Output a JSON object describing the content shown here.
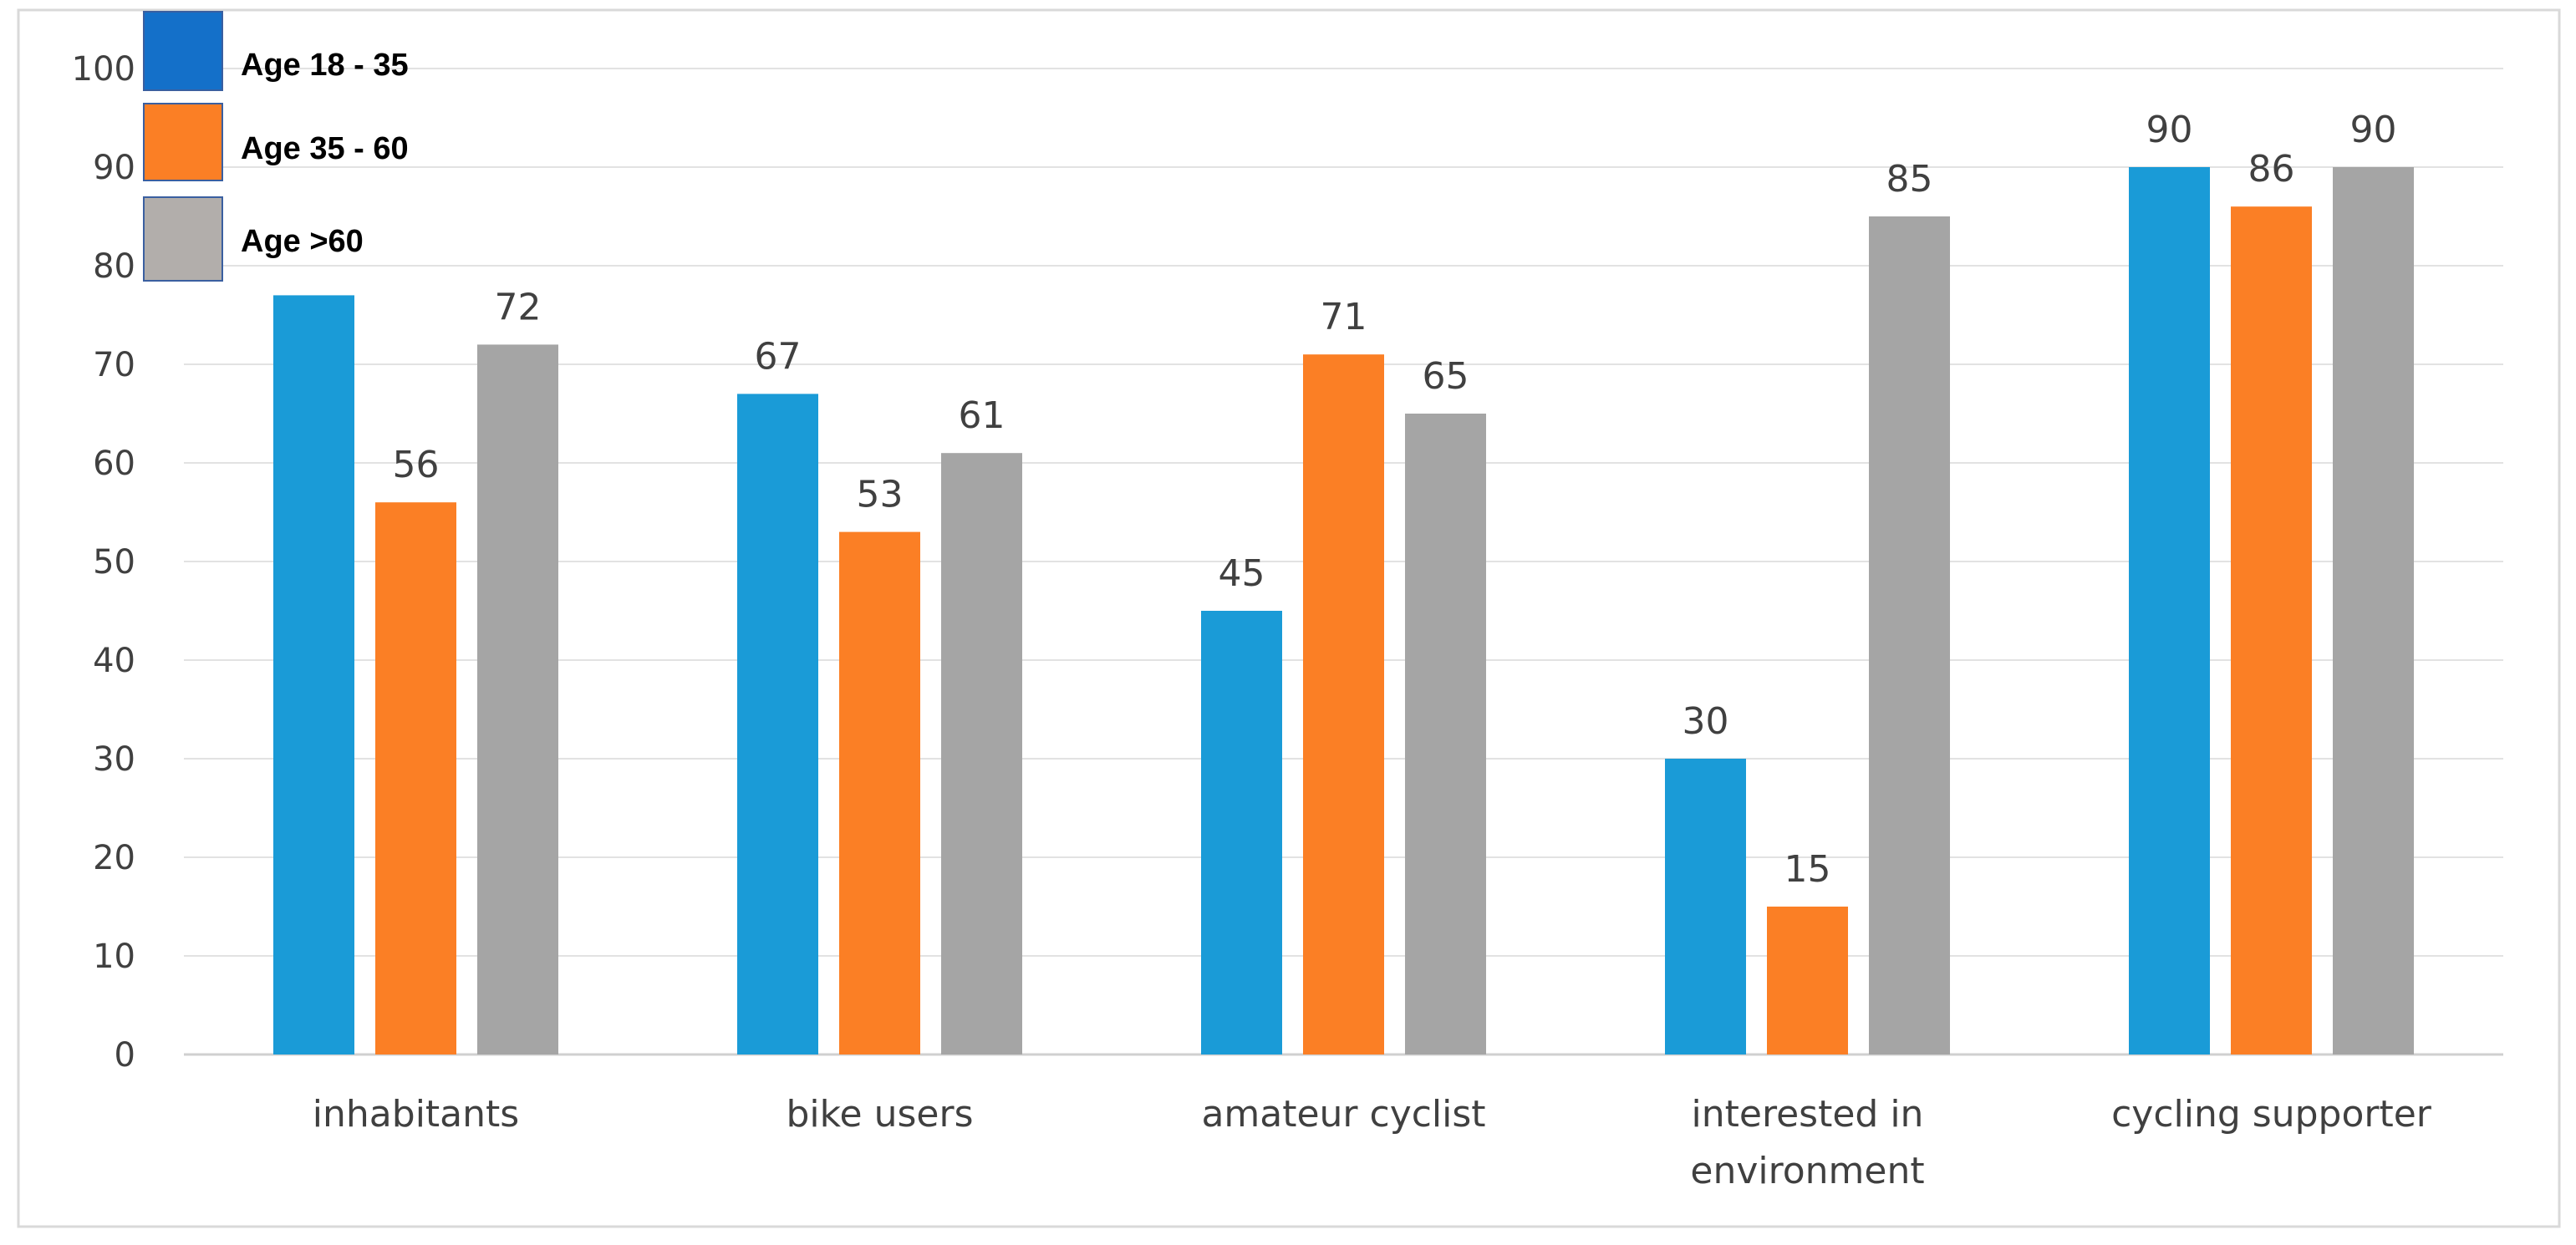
{
  "chart_data": {
    "type": "bar",
    "title": "",
    "xlabel": "",
    "ylabel": "",
    "ylim": [
      0,
      100
    ],
    "yticks": [
      0,
      10,
      20,
      30,
      40,
      50,
      60,
      70,
      80,
      90,
      100
    ],
    "grid": true,
    "legend_position": "top-left",
    "categories": [
      [
        "inhabitants"
      ],
      [
        "bike users"
      ],
      [
        "amateur cyclist"
      ],
      [
        "interested in",
        "environment"
      ],
      [
        "cycling supporter"
      ]
    ],
    "series": [
      {
        "name": "Age 18 -  35",
        "color": "#1a9bd7",
        "legend_color": "#1470c9",
        "values": [
          77,
          67,
          45,
          30,
          90
        ],
        "labels": [
          "",
          "67",
          "45",
          "30",
          "90"
        ]
      },
      {
        "name": "Age 35 - 60",
        "color": "#fb7f25",
        "legend_color": "#fb7f25",
        "values": [
          56,
          53,
          71,
          15,
          86
        ],
        "labels": [
          "56",
          "53",
          "71",
          "15",
          "86"
        ]
      },
      {
        "name": "Age >60",
        "color": "#a5a5a5",
        "legend_color": "#b2aeab",
        "values": [
          72,
          61,
          65,
          85,
          90
        ],
        "labels": [
          "72",
          "61",
          "65",
          "85",
          "90"
        ]
      }
    ]
  }
}
